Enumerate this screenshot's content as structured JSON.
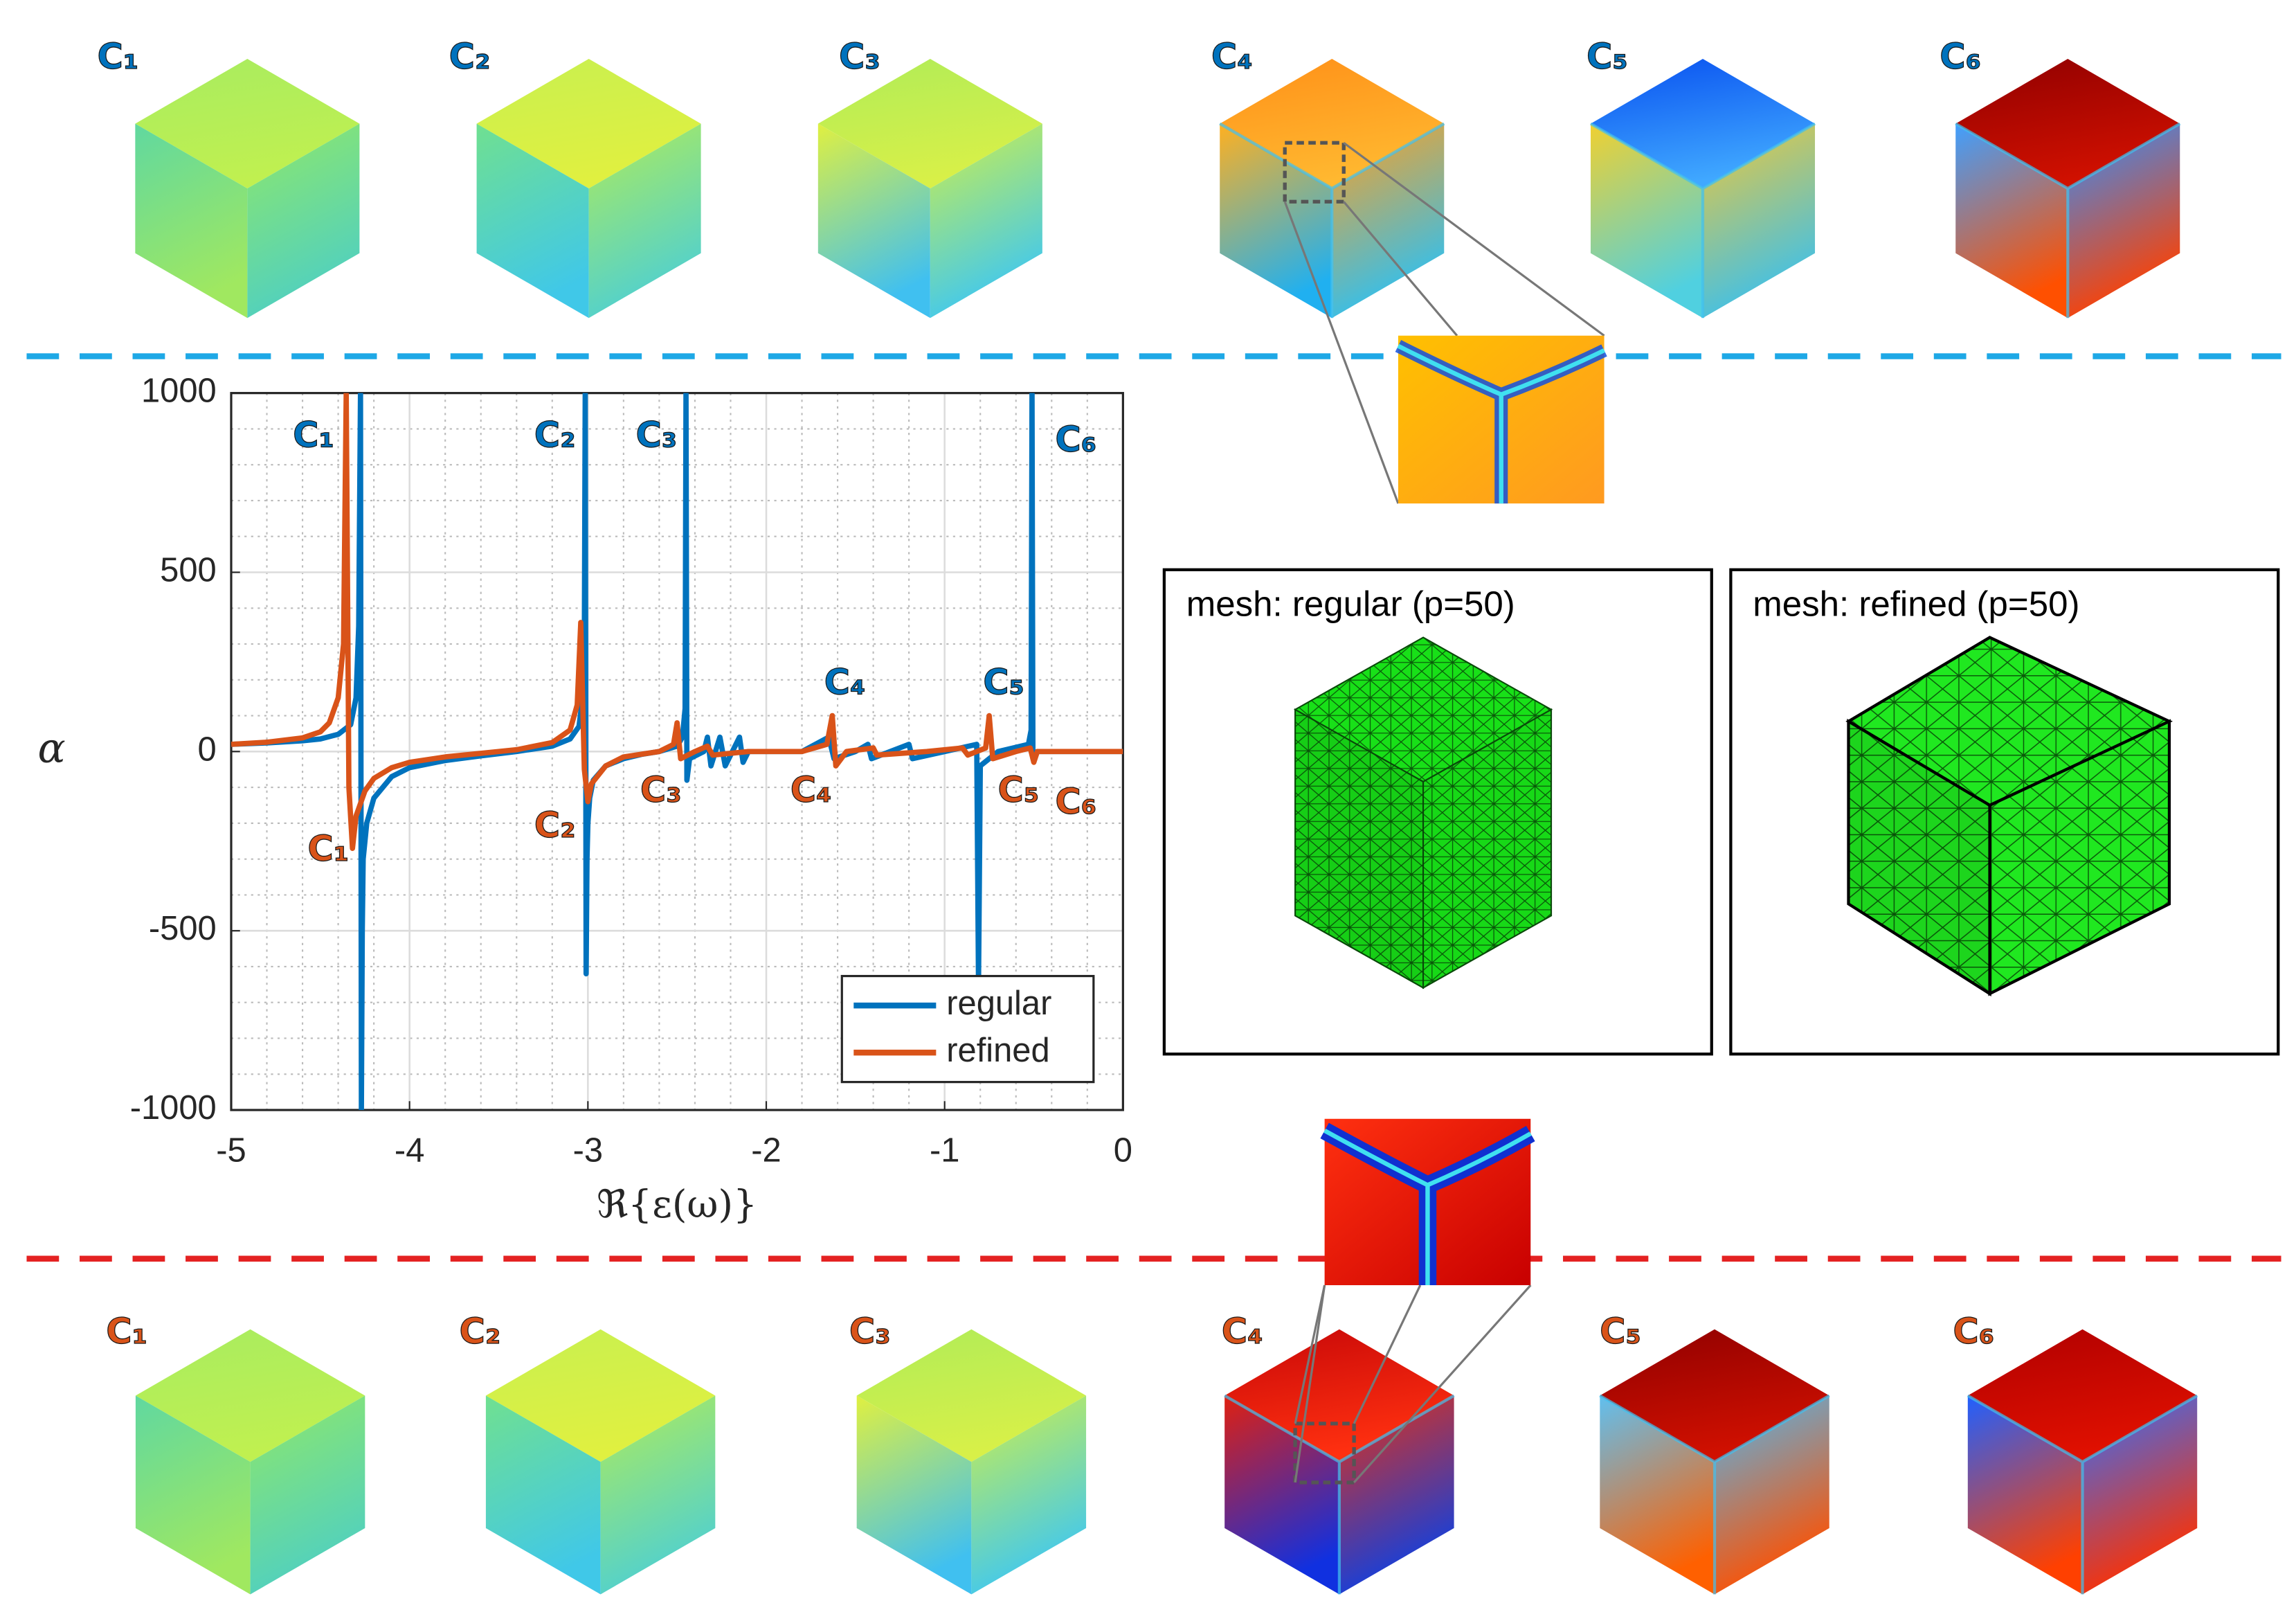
{
  "chart_data": {
    "type": "line",
    "xlabel": "ℜ{ε(ω)}",
    "ylabel": "α",
    "xlim": [
      -5,
      0
    ],
    "xticks": [
      -5,
      -4,
      -3,
      -2,
      -1,
      0
    ],
    "ylim": [
      -1000,
      1000
    ],
    "yticks": [
      -1000,
      -500,
      0,
      500,
      1000
    ],
    "grid": true,
    "minor_grid": true,
    "legend": "lower right",
    "series": [
      {
        "name": "regular",
        "color": "#0072bd",
        "x": [
          -5,
          -4.8,
          -4.6,
          -4.5,
          -4.4,
          -4.33,
          -4.3,
          -4.285,
          -4.275,
          -4.27,
          -4.265,
          -4.26,
          -4.24,
          -4.2,
          -4.1,
          -4,
          -3.8,
          -3.6,
          -3.4,
          -3.2,
          -3.1,
          -3.05,
          -3.03,
          -3.02,
          -3.015,
          -3.01,
          -3.005,
          -3,
          -2.99,
          -2.97,
          -2.9,
          -2.8,
          -2.7,
          -2.6,
          -2.5,
          -2.47,
          -2.455,
          -2.45,
          -2.445,
          -2.43,
          -2.35,
          -2.33,
          -2.31,
          -2.26,
          -2.23,
          -2.15,
          -2.13,
          -2.1,
          -1.8,
          -1.65,
          -1.62,
          -1.5,
          -1.43,
          -1.41,
          -1.2,
          -1.18,
          -1,
          -0.82,
          -0.81,
          -0.8,
          -0.7,
          -0.53,
          -0.515,
          -0.51,
          -0.505,
          -0.48,
          -0.2,
          0
        ],
        "values": [
          20,
          24,
          30,
          35,
          48,
          75,
          150,
          350,
          1000,
          -1000,
          -500,
          -300,
          -200,
          -130,
          -70,
          -45,
          -25,
          -12,
          0,
          15,
          35,
          70,
          150,
          300,
          1000,
          -620,
          -300,
          -200,
          -130,
          -80,
          -40,
          -20,
          -8,
          0,
          15,
          40,
          120,
          1000,
          -80,
          -20,
          0,
          40,
          -40,
          40,
          -40,
          40,
          -30,
          0,
          0,
          40,
          -20,
          0,
          20,
          -20,
          20,
          -20,
          0,
          20,
          -650,
          -40,
          0,
          20,
          60,
          1000,
          -20,
          0,
          0,
          0
        ]
      },
      {
        "name": "refined",
        "color": "#d95319",
        "x": [
          -5,
          -4.8,
          -4.6,
          -4.5,
          -4.45,
          -4.4,
          -4.37,
          -4.355,
          -4.34,
          -4.32,
          -4.3,
          -4.25,
          -4.2,
          -4.1,
          -4,
          -3.8,
          -3.6,
          -3.4,
          -3.2,
          -3.1,
          -3.06,
          -3.04,
          -3.02,
          -3,
          -2.98,
          -2.9,
          -2.8,
          -2.6,
          -2.52,
          -2.5,
          -2.48,
          -2.4,
          -2.33,
          -2.3,
          -2.1,
          -1.8,
          -1.66,
          -1.63,
          -1.61,
          -1.55,
          -1.4,
          -1.38,
          -1.1,
          -0.9,
          -0.87,
          -0.77,
          -0.75,
          -0.73,
          -0.6,
          -0.52,
          -0.5,
          -0.48,
          -0.2,
          0
        ],
        "values": [
          20,
          26,
          38,
          55,
          80,
          150,
          300,
          1000,
          -100,
          -270,
          -180,
          -110,
          -75,
          -45,
          -30,
          -15,
          -5,
          5,
          25,
          60,
          130,
          360,
          -50,
          -140,
          -90,
          -40,
          -15,
          0,
          20,
          80,
          -20,
          0,
          15,
          -10,
          0,
          0,
          20,
          100,
          -40,
          0,
          10,
          -10,
          0,
          10,
          -10,
          10,
          100,
          -20,
          0,
          10,
          -30,
          0,
          0,
          0
        ]
      }
    ],
    "annotations": [
      {
        "text": "C₁",
        "color": "#0072bd"
      },
      {
        "text": "C₂",
        "color": "#0072bd"
      },
      {
        "text": "C₃",
        "color": "#0072bd"
      },
      {
        "text": "C₄",
        "color": "#0072bd"
      },
      {
        "text": "C₅",
        "color": "#0072bd"
      },
      {
        "text": "C₆",
        "color": "#0072bd"
      },
      {
        "text": "C₁",
        "color": "#d95319"
      },
      {
        "text": "C₂",
        "color": "#d95319"
      },
      {
        "text": "C₃",
        "color": "#d95319"
      },
      {
        "text": "C₄",
        "color": "#d95319"
      },
      {
        "text": "C₅",
        "color": "#d95319"
      },
      {
        "text": "C₆",
        "color": "#d95319"
      }
    ]
  },
  "top_row": {
    "labels": [
      "C₁",
      "C₂",
      "C₃",
      "C₄",
      "C₅",
      "C₆"
    ],
    "color": "#0072bd"
  },
  "bottom_row": {
    "labels": [
      "C₁",
      "C₂",
      "C₃",
      "C₄",
      "C₅",
      "C₆"
    ],
    "color": "#d95319"
  },
  "mesh_panels": [
    {
      "title": "mesh: regular (p=50)"
    },
    {
      "title": "mesh: refined (p=50)"
    }
  ]
}
